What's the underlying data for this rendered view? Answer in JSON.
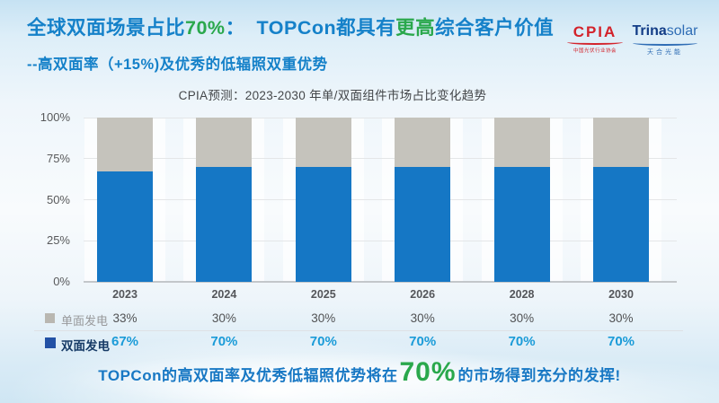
{
  "slide": {
    "title": {
      "parts": [
        {
          "text": "全球双面场景占比",
          "color": "blue"
        },
        {
          "text": "70%",
          "color": "green"
        },
        {
          "text": "：  TOPCon都具有",
          "color": "blue"
        },
        {
          "text": "更高",
          "color": "green"
        },
        {
          "text": "综合客户价值",
          "color": "blue"
        }
      ]
    },
    "subtitle": "--高双面率（+15%)及优秀的低辐照双重优势",
    "logos": {
      "cpia": {
        "name": "CPIA",
        "subtext": "中国光伏行业协会"
      },
      "trina": {
        "name_bold": "Trina",
        "name_light": "solar",
        "subtext": "天合光能"
      }
    },
    "footer": {
      "parts": [
        {
          "text": "TOPCon的高双面率及优秀低辐照优势将在",
          "style": "blue-normal"
        },
        {
          "text": "70%",
          "style": "green-large"
        },
        {
          "text": "的市场得到充分的发挥!",
          "style": "blue-normal"
        }
      ]
    }
  },
  "chart_data": {
    "type": "bar",
    "stacked": true,
    "title": "CPIA预测：2023-2030 年单/双面组件市场占比变化趋势",
    "categories": [
      "2023",
      "2024",
      "2025",
      "2026",
      "2028",
      "2030"
    ],
    "series": [
      {
        "name": "双面发电",
        "values": [
          67,
          70,
          70,
          70,
          70,
          70
        ],
        "labels": [
          "67%",
          "70%",
          "70%",
          "70%",
          "70%",
          "70%"
        ],
        "color": "#1577c5",
        "stack_position": "bottom"
      },
      {
        "name": "单面发电",
        "values": [
          33,
          30,
          30,
          30,
          30,
          30
        ],
        "labels": [
          "33%",
          "30%",
          "30%",
          "30%",
          "30%",
          "30%"
        ],
        "color": "#c5c3bc",
        "stack_position": "top"
      }
    ],
    "y_ticks": [
      "100%",
      "75%",
      "50%",
      "25%",
      "0%"
    ],
    "ylim": [
      0,
      100
    ],
    "grid": true,
    "legend_position": "bottom-table"
  },
  "colors": {
    "title_blue": "#1581c9",
    "accent_green": "#2aa84c",
    "bar_blue": "#1577c5",
    "bar_gray": "#c5c3bc",
    "swatch_blue": "#2351a5",
    "swatch_gray": "#b9b7b1",
    "legend_navy": "#163a66",
    "legend_gray": "#98999b",
    "value_cyan": "#1a9bd8",
    "value_dark": "#515254",
    "cpia_red": "#d3222a",
    "trina_navy": "#123c86",
    "trina_blue": "#2f6db5",
    "footer_blue": "#1878c4",
    "gridline": "#e4e6e8",
    "axis_line": "#c3c7ca"
  }
}
